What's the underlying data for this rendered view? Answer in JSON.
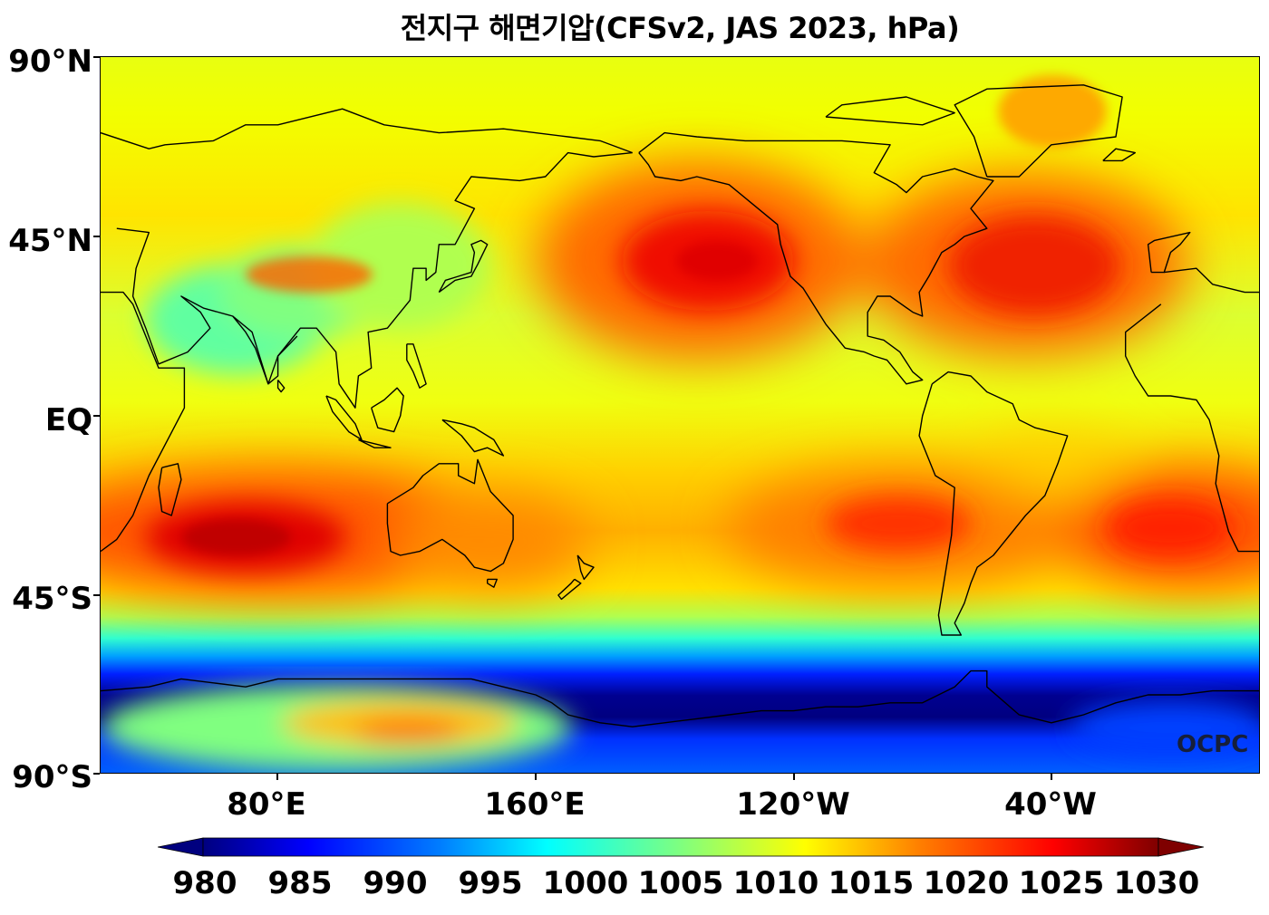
{
  "title": "전지구 해면기압(CFSv2, JAS 2023, hPa)",
  "watermark": "OCPC",
  "lat_labels": [
    "90°N",
    "45°N",
    "EQ",
    "45°S",
    "90°S"
  ],
  "lon_labels": [
    "80°E",
    "160°E",
    "120°W",
    "40°W"
  ],
  "colorbar": {
    "ticks": [
      "980",
      "985",
      "990",
      "995",
      "1000",
      "1005",
      "1010",
      "1015",
      "1020",
      "1025",
      "1030"
    ],
    "colormap": "jet",
    "colors": [
      "#00007f",
      "#0000ff",
      "#007fff",
      "#00ffff",
      "#7fff7f",
      "#ffff00",
      "#ff7f00",
      "#ff0000",
      "#7f0000"
    ],
    "extend": "both"
  },
  "map": {
    "projection": "equirectangular",
    "central_longitude": 160,
    "extent": [
      25,
      385,
      -90,
      90
    ],
    "coastline_color": "#000000",
    "land_features": [
      "Africa",
      "Eurasia",
      "Australia",
      "North America",
      "South America",
      "Greenland",
      "Antarctica",
      "Madagascar",
      "Japan",
      "New Zealand",
      "Indonesia"
    ],
    "pressure_features": [
      {
        "name": "North Pacific High",
        "lon": 217,
        "lat": 38,
        "value": 1024
      },
      {
        "name": "Azores High",
        "lon": 322,
        "lat": 37,
        "value": 1023
      },
      {
        "name": "Mascarene High",
        "lon": 65,
        "lat": -33,
        "value": 1027
      },
      {
        "name": "South Pacific High",
        "lon": 263,
        "lat": -33,
        "value": 1021
      },
      {
        "name": "South Atlantic High",
        "lon": 355,
        "lat": -31,
        "value": 1024
      },
      {
        "name": "Antarctic Circumpolar Trough",
        "lat": -65,
        "value": 980
      }
    ]
  }
}
